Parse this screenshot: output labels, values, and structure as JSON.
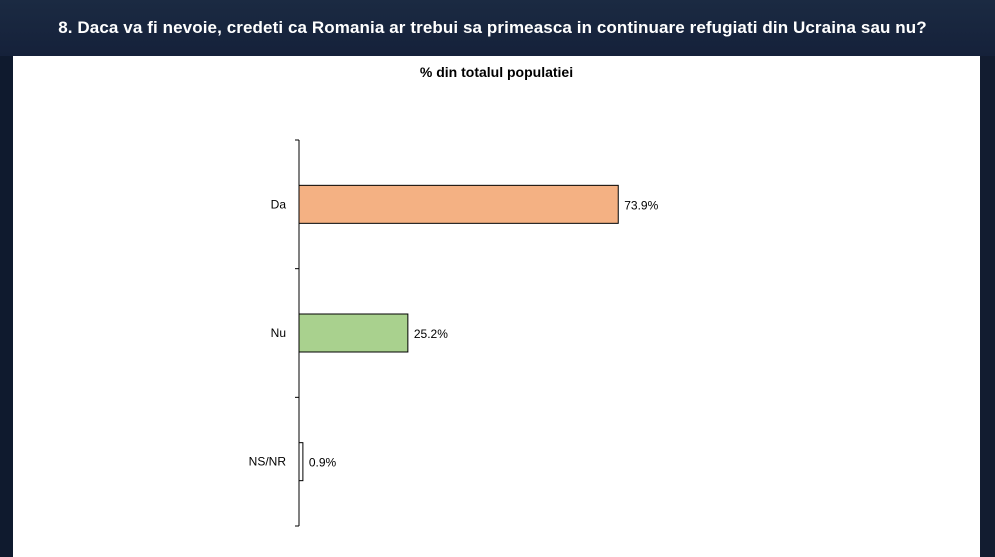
{
  "header": {
    "title": "8. Daca va fi nevoie, credeti ca Romania ar trebui sa primeasca in continuare refugiati din Ucraina sau nu?"
  },
  "chart_data": {
    "type": "bar",
    "orientation": "horizontal",
    "subtitle": "% din totalul populatiei",
    "categories": [
      "Da",
      "Nu",
      "NS/NR"
    ],
    "values": [
      73.9,
      25.2,
      0.9
    ],
    "value_labels": [
      "73.9%",
      "25.2%",
      "0.9%"
    ],
    "colors": [
      "#f4b183",
      "#a9d18e",
      "#ffffff"
    ],
    "xlim": [
      0,
      100
    ],
    "grid": false,
    "legend": "none"
  }
}
